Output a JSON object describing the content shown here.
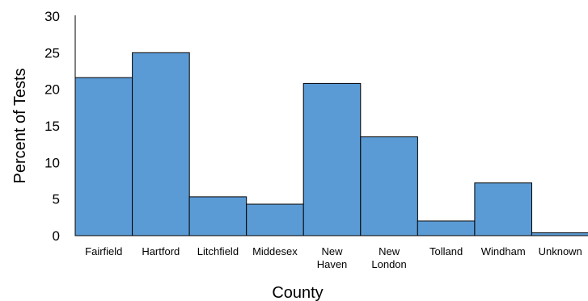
{
  "chart_data": {
    "type": "bar",
    "categories": [
      "Fairfield",
      "Hartford",
      "Litchfield",
      "Middesex",
      "New Haven",
      "New London",
      "Tolland",
      "Windham",
      "Unknown"
    ],
    "category_lines": [
      [
        "Fairfield"
      ],
      [
        "Hartford"
      ],
      [
        "Litchfield"
      ],
      [
        "Middesex"
      ],
      [
        "New",
        "Haven"
      ],
      [
        "New",
        "London"
      ],
      [
        "Tolland"
      ],
      [
        "Windham"
      ],
      [
        "Unknown"
      ]
    ],
    "values": [
      21.6,
      25.0,
      5.3,
      4.3,
      20.8,
      13.5,
      2.0,
      7.2,
      0.4
    ],
    "xlabel": "County",
    "ylabel": "Percent  of Tests",
    "ylim": [
      0,
      30
    ],
    "yticks": [
      0,
      5,
      10,
      15,
      20,
      25,
      30
    ],
    "grid": false,
    "bar_color": "#5b9bd5",
    "bar_edge_color": "#000000"
  }
}
